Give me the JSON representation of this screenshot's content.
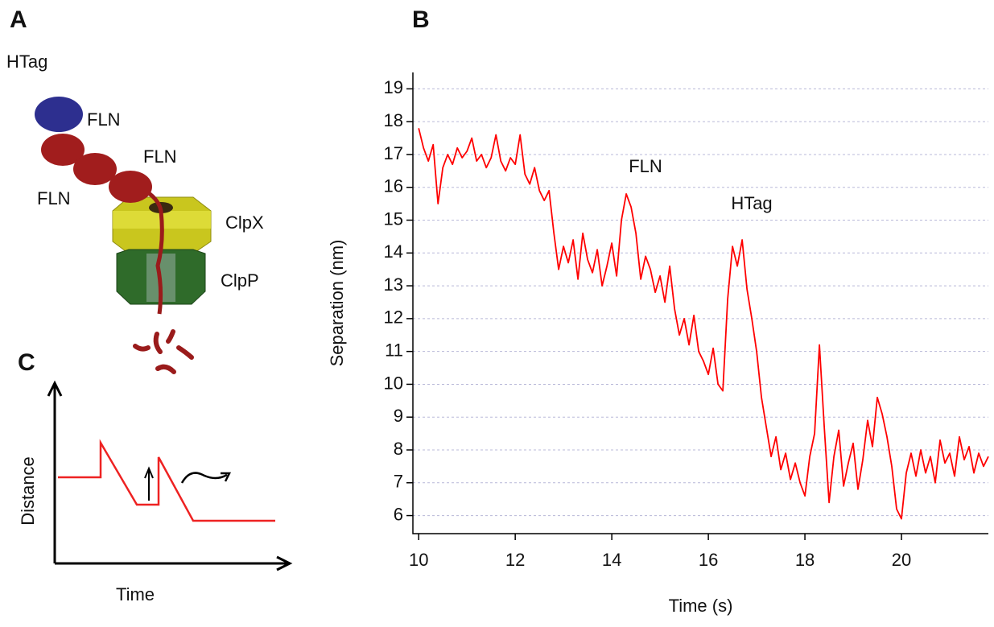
{
  "panel_labels": [
    "A",
    "B",
    "C"
  ],
  "diagram": {
    "labels": [
      "HTag",
      "FLN",
      "FLN",
      "FLN",
      "ClpX",
      "ClpP"
    ]
  },
  "schematic": {
    "x_label": "Time",
    "y_label": "Distance"
  },
  "chart_data": {
    "type": "line",
    "x_label": "Time (s)",
    "y_label": "Separation (nm)",
    "annotations": [
      "FLN",
      "HTag"
    ],
    "color": "#ff0000",
    "grid": true,
    "xlim": [
      9.88,
      21.8
    ],
    "ylim": [
      5.45,
      19.5
    ],
    "xticks": [
      10,
      12,
      14,
      16,
      18,
      20
    ],
    "yticks": [
      6,
      7,
      8,
      9,
      10,
      11,
      12,
      13,
      14,
      15,
      16,
      17,
      18,
      19
    ],
    "x": [
      10.0,
      10.1,
      10.2,
      10.3,
      10.4,
      10.5,
      10.6,
      10.7,
      10.8,
      10.9,
      11.0,
      11.1,
      11.2,
      11.3,
      11.4,
      11.5,
      11.6,
      11.7,
      11.8,
      11.9,
      12.0,
      12.1,
      12.2,
      12.3,
      12.4,
      12.5,
      12.6,
      12.7,
      12.8,
      12.9,
      13.0,
      13.1,
      13.2,
      13.3,
      13.4,
      13.5,
      13.6,
      13.7,
      13.8,
      13.9,
      14.0,
      14.1,
      14.2,
      14.3,
      14.4,
      14.5,
      14.6,
      14.7,
      14.8,
      14.9,
      15.0,
      15.1,
      15.2,
      15.3,
      15.4,
      15.5,
      15.6,
      15.7,
      15.8,
      15.9,
      16.0,
      16.1,
      16.2,
      16.3,
      16.4,
      16.5,
      16.6,
      16.7,
      16.8,
      16.9,
      17.0,
      17.1,
      17.2,
      17.3,
      17.4,
      17.5,
      17.6,
      17.7,
      17.8,
      17.9,
      18.0,
      18.1,
      18.2,
      18.3,
      18.4,
      18.5,
      18.6,
      18.7,
      18.8,
      18.9,
      19.0,
      19.1,
      19.2,
      19.3,
      19.4,
      19.5,
      19.6,
      19.7,
      19.8,
      19.9,
      20.0,
      20.1,
      20.2,
      20.3,
      20.4,
      20.5,
      20.6,
      20.7,
      20.8,
      20.9,
      21.0,
      21.1,
      21.2,
      21.3,
      21.4,
      21.5,
      21.6,
      21.7,
      21.8
    ],
    "values": [
      17.8,
      17.2,
      16.8,
      17.3,
      15.5,
      16.6,
      17.0,
      16.7,
      17.2,
      16.9,
      17.1,
      17.5,
      16.8,
      17.0,
      16.6,
      16.9,
      17.6,
      16.8,
      16.5,
      16.9,
      16.7,
      17.6,
      16.4,
      16.1,
      16.6,
      15.9,
      15.6,
      15.9,
      14.6,
      13.5,
      14.2,
      13.7,
      14.4,
      13.2,
      14.6,
      13.8,
      13.4,
      14.1,
      13.0,
      13.6,
      14.3,
      13.3,
      15.0,
      15.8,
      15.4,
      14.6,
      13.2,
      13.9,
      13.5,
      12.8,
      13.3,
      12.5,
      13.6,
      12.3,
      11.5,
      12.0,
      11.2,
      12.1,
      11.0,
      10.7,
      10.3,
      11.1,
      10.0,
      9.8,
      12.6,
      14.2,
      13.6,
      14.4,
      12.9,
      12.0,
      11.0,
      9.6,
      8.7,
      7.8,
      8.4,
      7.4,
      7.9,
      7.1,
      7.6,
      7.0,
      6.6,
      7.8,
      8.5,
      11.2,
      8.7,
      6.4,
      7.8,
      8.6,
      6.9,
      7.6,
      8.2,
      6.8,
      7.7,
      8.9,
      8.1,
      9.6,
      9.1,
      8.4,
      7.5,
      6.2,
      5.9,
      7.3,
      7.9,
      7.2,
      8.0,
      7.3,
      7.8,
      7.0,
      8.3,
      7.6,
      7.9,
      7.2,
      8.4,
      7.7,
      8.1,
      7.3,
      7.9,
      7.5,
      7.8
    ]
  }
}
